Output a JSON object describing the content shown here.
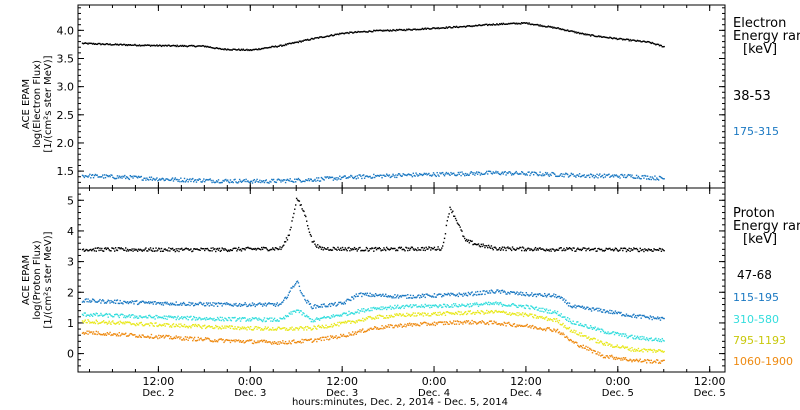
{
  "colors": {
    "black": "#000000",
    "blue": "#1a78c2",
    "cyan": "#33dddd",
    "yellow": "#e8e81a",
    "orange": "#ee8a11"
  },
  "electron_legend": {
    "title1": "Electron",
    "title2": "Energy rar",
    "unit": "[keV]"
  },
  "proton_legend": {
    "title1": "Proton",
    "title2": "Energy rar",
    "unit": "[keV]"
  },
  "xaxis_title": "hours:minutes, Dec.  2, 2014 - Dec.  5, 2014",
  "chart_data": [
    {
      "type": "scatter",
      "panel": "electron",
      "ylabel_lines": [
        "ACE EPAM",
        "log(Electron Flux)",
        "[1/(cm²s ster MeV)]"
      ],
      "ylim": [
        1.2,
        4.45
      ],
      "yticks": [
        1.5,
        2.0,
        2.5,
        3.0,
        3.5,
        4.0
      ],
      "ytick_labels": [
        "1.5",
        "2.0",
        "2.5",
        "3.0",
        "3.5",
        "4.0"
      ],
      "x_unit": "hours since Dec. 2 00:00",
      "xlim": [
        1.5,
        86
      ],
      "series": [
        {
          "name": "38-53",
          "color": "#000000",
          "x": [
            2,
            6,
            12,
            18,
            20,
            24,
            28,
            32,
            36,
            40,
            44,
            48,
            52,
            56,
            60,
            64,
            68,
            72,
            76,
            78
          ],
          "y": [
            3.78,
            3.76,
            3.74,
            3.73,
            3.68,
            3.66,
            3.74,
            3.86,
            3.96,
            4.0,
            4.02,
            4.05,
            4.08,
            4.12,
            4.14,
            4.05,
            3.93,
            3.86,
            3.8,
            3.72
          ]
        },
        {
          "name": "175-315",
          "color": "#1a78c2",
          "x": [
            2,
            8,
            14,
            20,
            26,
            32,
            38,
            44,
            50,
            56,
            62,
            68,
            74,
            78
          ],
          "y": [
            1.43,
            1.4,
            1.36,
            1.34,
            1.33,
            1.36,
            1.41,
            1.44,
            1.46,
            1.48,
            1.46,
            1.43,
            1.42,
            1.38
          ]
        }
      ]
    },
    {
      "type": "scatter",
      "panel": "proton",
      "ylabel_lines": [
        "ACE EPAM",
        "log(Proton Flux)",
        "[1/(cm²s ster MeV)]"
      ],
      "ylim": [
        -0.6,
        5.4
      ],
      "yticks": [
        0,
        1,
        2,
        3,
        4,
        5
      ],
      "ytick_labels": [
        "0",
        "1",
        "2",
        "3",
        "4",
        "5"
      ],
      "x_unit": "hours since Dec. 2 00:00",
      "xlim": [
        1.5,
        86
      ],
      "series": [
        {
          "name": "47-68",
          "color": "#000000",
          "x": [
            2,
            10,
            20,
            28,
            29,
            30,
            31,
            32,
            33,
            40,
            49,
            50,
            51,
            52,
            54,
            56,
            64,
            72,
            78
          ],
          "y": [
            3.42,
            3.41,
            3.41,
            3.45,
            3.9,
            5.1,
            4.6,
            3.7,
            3.45,
            3.42,
            3.45,
            4.8,
            4.3,
            3.7,
            3.55,
            3.45,
            3.42,
            3.41,
            3.41
          ]
        },
        {
          "name": "115-195",
          "color": "#1a78c2",
          "x": [
            2,
            10,
            20,
            28,
            30,
            31,
            32,
            36,
            38,
            44,
            52,
            56,
            60,
            64,
            66,
            70,
            74,
            78
          ],
          "y": [
            1.75,
            1.68,
            1.62,
            1.62,
            2.4,
            1.8,
            1.55,
            1.65,
            1.95,
            1.88,
            1.95,
            2.05,
            1.95,
            1.9,
            1.55,
            1.42,
            1.25,
            1.15
          ]
        },
        {
          "name": "310-580",
          "color": "#33dddd",
          "x": [
            2,
            10,
            20,
            28,
            30,
            32,
            36,
            40,
            44,
            52,
            56,
            60,
            64,
            66,
            70,
            74,
            78
          ],
          "y": [
            1.3,
            1.22,
            1.15,
            1.12,
            1.45,
            1.1,
            1.3,
            1.5,
            1.55,
            1.6,
            1.65,
            1.55,
            1.35,
            1.05,
            0.75,
            0.55,
            0.45
          ]
        },
        {
          "name": "795-1193",
          "color": "#e8e81a",
          "x": [
            2,
            10,
            20,
            28,
            32,
            36,
            40,
            44,
            52,
            56,
            60,
            64,
            66,
            70,
            74,
            78
          ],
          "y": [
            1.08,
            0.98,
            0.88,
            0.82,
            0.85,
            1.0,
            1.2,
            1.28,
            1.35,
            1.38,
            1.28,
            1.1,
            0.75,
            0.35,
            0.15,
            0.1
          ]
        },
        {
          "name": "1060-1900",
          "color": "#ee8a11",
          "x": [
            2,
            10,
            20,
            28,
            32,
            36,
            40,
            44,
            52,
            56,
            60,
            64,
            66,
            70,
            74,
            78
          ],
          "y": [
            0.72,
            0.6,
            0.45,
            0.38,
            0.45,
            0.6,
            0.85,
            0.95,
            1.05,
            1.02,
            0.92,
            0.78,
            0.4,
            -0.05,
            -0.2,
            -0.25
          ]
        }
      ]
    }
  ],
  "x_axis": {
    "tick_hours": [
      12,
      24,
      36,
      48,
      60,
      72,
      84
    ],
    "tick_labels": [
      {
        "time": "12:00",
        "day": "Dec. 2"
      },
      {
        "time": "0:00",
        "day": "Dec. 3"
      },
      {
        "time": "12:00",
        "day": "Dec. 3"
      },
      {
        "time": "0:00",
        "day": "Dec. 4"
      },
      {
        "time": "12:00",
        "day": "Dec. 4"
      },
      {
        "time": "0:00",
        "day": "Dec. 5"
      },
      {
        "time": "12:00",
        "day": "Dec. 5"
      }
    ]
  }
}
